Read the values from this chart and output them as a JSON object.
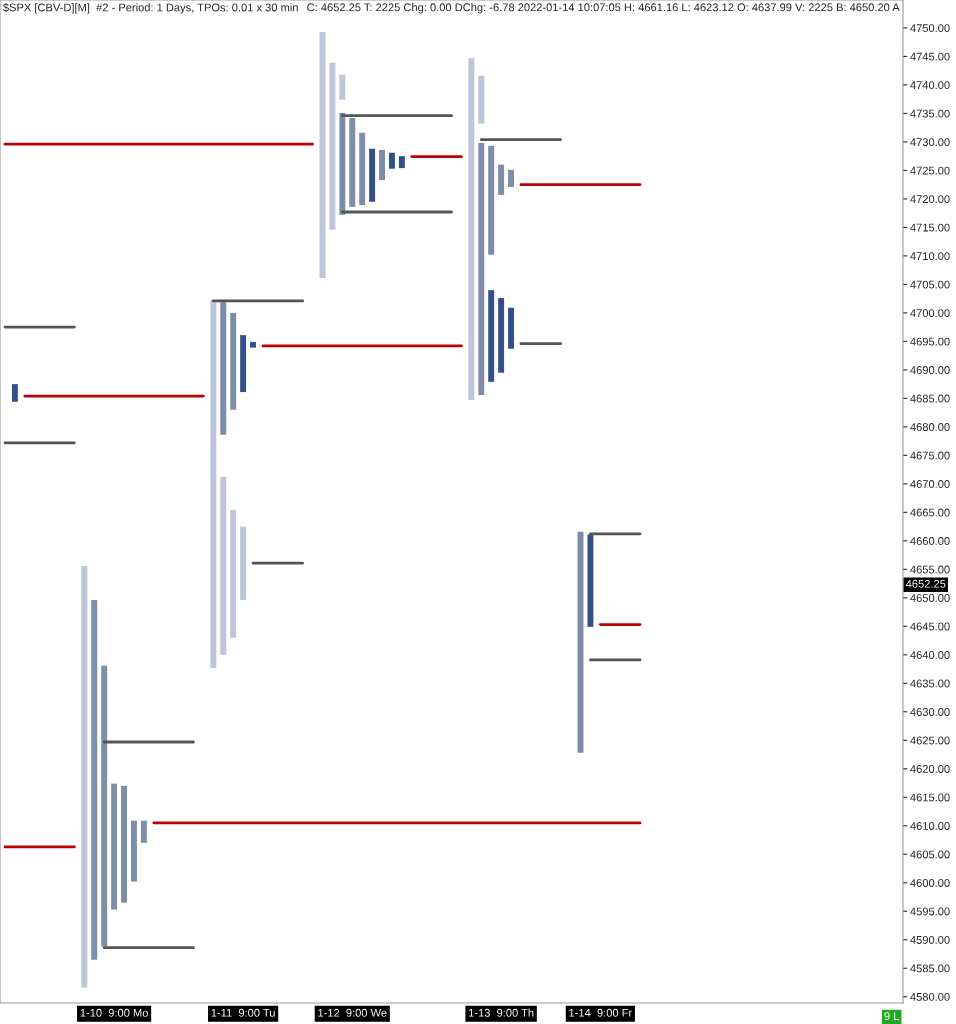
{
  "chart_data": {
    "type": "bar",
    "title": "$SPX [CBV-D][M]  #2 - Period: 1 Days, TPOs: 0.01 x 30 min",
    "subtitle": "C: 4652.25 T: 2225 Chg: 0.00 DChg: -6.78 2022-01-14 10:07:05 H: 4661.16 L: 4623.12 O: 4637.99 V: 2225 B: 4650.20 A",
    "categories": [
      null,
      null,
      null,
      null,
      null,
      null,
      null,
      null,
      null,
      null,
      null,
      "1-10  9:00 Mo",
      null,
      null,
      null,
      null,
      null,
      null,
      null,
      null,
      null,
      null,
      null,
      null,
      "1-11  9:00 Tu",
      null,
      null,
      null,
      null,
      null,
      null,
      null,
      null,
      null,
      null,
      "1-12  9:00 We",
      null,
      null,
      null,
      null,
      null,
      null,
      null,
      null,
      null,
      null,
      null,
      null,
      null,
      null,
      "1-13  9:00 Th",
      null,
      null,
      null,
      null,
      null,
      null,
      null,
      null,
      null,
      "1-14  9:00 Fr",
      null,
      null,
      null,
      null,
      null,
      null,
      null,
      null,
      null,
      null,
      null,
      null,
      null,
      null,
      null,
      null,
      null,
      null,
      null,
      null,
      null,
      null,
      null,
      null,
      null,
      null,
      null,
      null,
      null,
      null
    ],
    "ylim": [
      4578.9,
      4754.9
    ],
    "yticks": [
      {
        "value": 4580,
        "label": "4580.00"
      },
      {
        "value": 4585,
        "label": "4585.00"
      },
      {
        "value": 4590,
        "label": "4590.00"
      },
      {
        "value": 4595,
        "label": "4595.00"
      },
      {
        "value": 4600,
        "label": "4600.00"
      },
      {
        "value": 4605,
        "label": "4605.00"
      },
      {
        "value": 4610,
        "label": "4610.00"
      },
      {
        "value": 4615,
        "label": "4615.00"
      },
      {
        "value": 4620,
        "label": "4620.00"
      },
      {
        "value": 4625,
        "label": "4625.00"
      },
      {
        "value": 4630,
        "label": "4630.00"
      },
      {
        "value": 4635,
        "label": "4635.00"
      },
      {
        "value": 4640,
        "label": "4640.00"
      },
      {
        "value": 4645,
        "label": "4645.00"
      },
      {
        "value": 4650,
        "label": "4650.00"
      },
      {
        "value": 4655,
        "label": "4655.00"
      },
      {
        "value": 4660,
        "label": "4660.00"
      },
      {
        "value": 4665,
        "label": "4665.00"
      },
      {
        "value": 4670,
        "label": "4670.00"
      },
      {
        "value": 4675,
        "label": "4675.00"
      },
      {
        "value": 4680,
        "label": "4680.00"
      },
      {
        "value": 4685,
        "label": "4685.00"
      },
      {
        "value": 4690,
        "label": "4690.00"
      },
      {
        "value": 4695,
        "label": "4695.00"
      },
      {
        "value": 4700,
        "label": "4700.00"
      },
      {
        "value": 4705,
        "label": "4705.00"
      },
      {
        "value": 4710,
        "label": "4710.00"
      },
      {
        "value": 4715,
        "label": "4715.00"
      },
      {
        "value": 4720,
        "label": "4720.00"
      },
      {
        "value": 4725,
        "label": "4725.00"
      },
      {
        "value": 4730,
        "label": "4730.00"
      },
      {
        "value": 4735,
        "label": "4735.00"
      },
      {
        "value": 4740,
        "label": "4740.00"
      },
      {
        "value": 4745,
        "label": "4745.00"
      },
      {
        "value": 4750,
        "label": "4750.00"
      }
    ],
    "annotations": [
      "4652.25",
      "9 L"
    ],
    "series": [
      {
        "base": [
          null,
          4684.4,
          null,
          null,
          null,
          null,
          null,
          null,
          4581.6,
          4586.5,
          4588.8,
          4595.3,
          4596.5,
          4600.2,
          4607.0,
          null,
          null,
          null,
          null,
          null,
          null,
          4637.7,
          4678.6,
          4683.0,
          4686.1,
          4693.9,
          null,
          null,
          null,
          null,
          null,
          null,
          4706.1,
          4714.6,
          4737.4,
          4718.6,
          4718.9,
          4719.5,
          4723.3,
          4725.3,
          4725.4,
          null,
          null,
          null,
          null,
          null,
          null,
          4684.7,
          4733.2,
          4710.2,
          4720.7,
          4722.1,
          null,
          null,
          null,
          null,
          null,
          null,
          4622.8,
          4644.9,
          null,
          null,
          null,
          null,
          null,
          null,
          null,
          null,
          null,
          null,
          null,
          null,
          null,
          null,
          null,
          null,
          null,
          null,
          null,
          null,
          null,
          null,
          null,
          null,
          null,
          null,
          null,
          null,
          null,
          null,
          null
        ],
        "values": [
          null,
          3.1,
          null,
          null,
          null,
          null,
          null,
          null,
          74.0,
          63.1,
          49.3,
          22.1,
          20.5,
          10.7,
          3.9,
          null,
          null,
          null,
          null,
          null,
          null,
          64.6,
          23.3,
          17.0,
          10.0,
          1.0,
          null,
          null,
          null,
          null,
          null,
          null,
          43.2,
          29.3,
          4.4,
          15.6,
          12.7,
          9.3,
          5.3,
          2.8,
          2.1,
          null,
          null,
          null,
          null,
          null,
          null,
          60.0,
          8.4,
          19.1,
          5.3,
          3.0,
          null,
          null,
          null,
          null,
          null,
          null,
          38.8,
          16.2,
          null,
          null,
          null,
          null,
          null,
          null,
          null,
          null,
          null,
          null,
          null,
          null,
          null,
          null,
          null,
          null,
          null,
          null,
          null,
          null,
          null,
          null,
          null,
          null,
          null,
          null,
          null,
          null,
          null,
          null,
          null
        ],
        "colors": [
          null,
          "#34508a",
          null,
          null,
          null,
          null,
          null,
          null,
          "#bcc6d8",
          "#7f8ea8",
          "#7f8ea8",
          "#7f8ea8",
          "#7f8ea8",
          "#7f8ea8",
          "#7f8ea8",
          null,
          null,
          null,
          null,
          null,
          null,
          "#bcc6d8",
          "#7f8ea8",
          "#7f8ea8",
          "#34508a",
          "#34508a",
          null,
          null,
          null,
          null,
          null,
          null,
          "#bcc6d8",
          "#bcc6d8",
          "#bcc6d8",
          "#7f8ea8",
          "#7f8ea8",
          "#34508a",
          "#7f8ea8",
          "#34508a",
          "#34508a",
          null,
          null,
          null,
          null,
          null,
          null,
          "#bcc6d8",
          "#bcc6d8",
          "#7f8ea8",
          "#7f8ea8",
          "#7f8ea8",
          null,
          null,
          null,
          null,
          null,
          null,
          "#7f8ea8",
          "#34508a",
          null,
          null,
          null,
          null,
          null,
          null,
          null,
          null,
          null,
          null,
          null,
          null,
          null,
          null,
          null,
          null,
          null,
          null,
          null,
          null,
          null,
          null,
          null,
          null,
          null,
          null,
          null,
          null,
          null,
          null,
          null
        ]
      },
      {
        "base": [
          null,
          null,
          null,
          null,
          null,
          null,
          null,
          null,
          null,
          null,
          null,
          null,
          null,
          null,
          null,
          null,
          null,
          null,
          null,
          null,
          null,
          null,
          4640.0,
          4643.0,
          4649.6,
          null,
          null,
          null,
          null,
          null,
          null,
          null,
          null,
          null,
          4717.2,
          null,
          null,
          null,
          null,
          null,
          null,
          null,
          null,
          null,
          null,
          null,
          null,
          null,
          4685.6,
          4687.9,
          4689.5,
          4693.7,
          null,
          null,
          null,
          null,
          null,
          null,
          null,
          null,
          null,
          null,
          null,
          null,
          null,
          null,
          null,
          null,
          null,
          null,
          null,
          null,
          null,
          null,
          null,
          null,
          null,
          null,
          null,
          null,
          null,
          null,
          null,
          null,
          null,
          null,
          null,
          null,
          null,
          null,
          null
        ],
        "values": [
          null,
          null,
          null,
          null,
          null,
          null,
          null,
          null,
          null,
          null,
          null,
          null,
          null,
          null,
          null,
          null,
          null,
          null,
          null,
          null,
          null,
          null,
          31.2,
          22.4,
          12.9,
          null,
          null,
          null,
          null,
          null,
          null,
          null,
          null,
          null,
          17.9,
          null,
          null,
          null,
          null,
          null,
          null,
          null,
          null,
          null,
          null,
          null,
          null,
          null,
          44.2,
          16.1,
          13.1,
          7.2,
          null,
          null,
          null,
          null,
          null,
          null,
          null,
          null,
          null,
          null,
          null,
          null,
          null,
          null,
          null,
          null,
          null,
          null,
          null,
          null,
          null,
          null,
          null,
          null,
          null,
          null,
          null,
          null,
          null,
          null,
          null,
          null,
          null,
          null,
          null,
          null,
          null,
          null,
          null
        ],
        "colors": [
          null,
          null,
          null,
          null,
          null,
          null,
          null,
          null,
          null,
          null,
          null,
          null,
          null,
          null,
          null,
          null,
          null,
          null,
          null,
          null,
          null,
          null,
          "#bcc6d8",
          "#bcc6d8",
          "#bcc6d8",
          null,
          null,
          null,
          null,
          null,
          null,
          null,
          null,
          null,
          "#7f8ea8",
          null,
          null,
          null,
          null,
          null,
          null,
          null,
          null,
          null,
          null,
          null,
          null,
          null,
          "#7f8ea8",
          "#34508a",
          "#34508a",
          "#34508a",
          null,
          null,
          null,
          null,
          null,
          null,
          null,
          null,
          null,
          null,
          null,
          null,
          null,
          null,
          null,
          null,
          null,
          null,
          null,
          null,
          null,
          null,
          null,
          null,
          null,
          null,
          null,
          null,
          null,
          null,
          null,
          null,
          null,
          null,
          null,
          null,
          null,
          null,
          null
        ]
      },
      {
        "type": "line",
        "color": "#555555",
        "values": [
          4697.5,
          4697.5,
          4697.5,
          4697.5,
          4697.5,
          4697.5,
          4697.5,
          4697.5,
          null,
          null,
          4624.7,
          4624.7,
          4624.7,
          4624.7,
          4624.7,
          4624.7,
          4624.7,
          4624.7,
          4624.7,
          4624.7,
          null,
          4702.1,
          4702.1,
          4702.1,
          4702.1,
          4702.1,
          4702.1,
          4702.1,
          4702.1,
          4702.1,
          4702.1,
          null,
          null,
          null,
          4734.6,
          4734.6,
          4734.6,
          4734.6,
          4734.6,
          4734.6,
          4734.6,
          4734.6,
          4734.6,
          4734.6,
          4734.6,
          4734.6,
          null,
          null,
          4730.4,
          4730.4,
          4730.4,
          4730.4,
          4730.4,
          4730.4,
          4730.4,
          4730.4,
          4730.4,
          null,
          null,
          4661.2,
          4661.2,
          4661.2,
          4661.2,
          4661.2,
          4661.2,
          null,
          null,
          null,
          null,
          null,
          null,
          null,
          null,
          null,
          null,
          null,
          null,
          null,
          null,
          null,
          null,
          null,
          null,
          null,
          null,
          null,
          null,
          null,
          null,
          null,
          null
        ]
      },
      {
        "type": "line",
        "color": "#555555",
        "values": [
          4677.2,
          4677.2,
          4677.2,
          4677.2,
          4677.2,
          4677.2,
          4677.2,
          4677.2,
          null,
          null,
          4588.6,
          4588.6,
          4588.6,
          4588.6,
          4588.6,
          4588.6,
          4588.6,
          4588.6,
          4588.6,
          4588.6,
          null,
          null,
          null,
          null,
          null,
          4656.1,
          4656.1,
          4656.1,
          4656.1,
          4656.1,
          4656.1,
          null,
          null,
          null,
          4717.7,
          4717.7,
          4717.7,
          4717.7,
          4717.7,
          4717.7,
          4717.7,
          4717.7,
          4717.7,
          4717.7,
          4717.7,
          4717.7,
          null,
          null,
          null,
          null,
          null,
          null,
          4694.6,
          4694.6,
          4694.6,
          4694.6,
          4694.6,
          null,
          null,
          4639.1,
          4639.1,
          4639.1,
          4639.1,
          4639.1,
          4639.1,
          null,
          null,
          null,
          null,
          null,
          null,
          null,
          null,
          null,
          null,
          null,
          null,
          null,
          null,
          null,
          null,
          null,
          null,
          null,
          null,
          null,
          null,
          null,
          null,
          null,
          null
        ]
      },
      {
        "type": "line",
        "color": "#c00000",
        "values": [
          4729.6,
          4729.6,
          4729.6,
          4729.6,
          4729.6,
          4729.6,
          4729.6,
          4729.6,
          4729.6,
          4729.6,
          4729.6,
          4729.6,
          4729.6,
          4729.6,
          4729.6,
          4729.6,
          4729.6,
          4729.6,
          4729.6,
          4729.6,
          4729.6,
          4729.6,
          4729.6,
          4729.6,
          4729.6,
          4729.6,
          4729.6,
          4729.6,
          4729.6,
          4729.6,
          4729.6,
          4729.6,
          null,
          null,
          null,
          null,
          null,
          null,
          null,
          null,
          null,
          4727.4,
          4727.4,
          4727.4,
          4727.4,
          4727.4,
          4727.4,
          null,
          null,
          null,
          null,
          null,
          4722.5,
          4722.5,
          4722.5,
          4722.5,
          4722.5,
          4722.5,
          4722.5,
          4722.5,
          4722.5,
          4722.5,
          4722.5,
          4722.5,
          4722.5,
          null,
          null,
          null,
          null,
          null,
          null,
          null,
          null,
          null,
          null,
          null,
          null,
          null,
          null,
          null,
          null,
          null,
          null,
          null,
          null,
          null,
          null,
          null,
          null,
          null,
          null
        ]
      },
      {
        "type": "line",
        "color": "#c00000",
        "values": [
          null,
          null,
          4685.4,
          4685.4,
          4685.4,
          4685.4,
          4685.4,
          4685.4,
          4685.4,
          4685.4,
          4685.4,
          4685.4,
          4685.4,
          4685.4,
          4685.4,
          4685.4,
          4685.4,
          4685.4,
          4685.4,
          4685.4,
          4685.4,
          null,
          null,
          null,
          null,
          null,
          4694.2,
          4694.2,
          4694.2,
          4694.2,
          4694.2,
          4694.2,
          4694.2,
          4694.2,
          4694.2,
          4694.2,
          4694.2,
          4694.2,
          4694.2,
          4694.2,
          4694.2,
          4694.2,
          4694.2,
          4694.2,
          4694.2,
          4694.2,
          4694.2,
          null,
          null,
          null,
          null,
          null,
          null,
          null,
          null,
          null,
          null,
          null,
          null,
          null,
          4645.3,
          4645.3,
          4645.3,
          4645.3,
          4645.3,
          null,
          null,
          null,
          null,
          null,
          null,
          null,
          null,
          null,
          null,
          null,
          null,
          null,
          null,
          null,
          null,
          null,
          null,
          null,
          null,
          null,
          null,
          null,
          null,
          null,
          null
        ]
      },
      {
        "type": "line",
        "color": "#c00000",
        "values": [
          4606.3,
          4606.3,
          4606.3,
          4606.3,
          4606.3,
          4606.3,
          4606.3,
          4606.3,
          null,
          null,
          null,
          null,
          null,
          null,
          null,
          4610.5,
          4610.5,
          4610.5,
          4610.5,
          4610.5,
          4610.5,
          4610.5,
          4610.5,
          4610.5,
          4610.5,
          4610.5,
          4610.5,
          4610.5,
          4610.5,
          4610.5,
          4610.5,
          4610.5,
          4610.5,
          4610.5,
          4610.5,
          4610.5,
          4610.5,
          4610.5,
          4610.5,
          4610.5,
          4610.5,
          4610.5,
          4610.5,
          4610.5,
          4610.5,
          4610.5,
          4610.5,
          4610.5,
          4610.5,
          4610.5,
          4610.5,
          4610.5,
          4610.5,
          4610.5,
          4610.5,
          4610.5,
          4610.5,
          4610.5,
          4610.5,
          4610.5,
          4610.5,
          4610.5,
          4610.5,
          4610.5,
          4610.5,
          null,
          null,
          null,
          null,
          null,
          null,
          null,
          null,
          null,
          null,
          null,
          null,
          null,
          null,
          null,
          null,
          null,
          null,
          null,
          null,
          null,
          null,
          null,
          null,
          null,
          null
        ]
      }
    ]
  }
}
